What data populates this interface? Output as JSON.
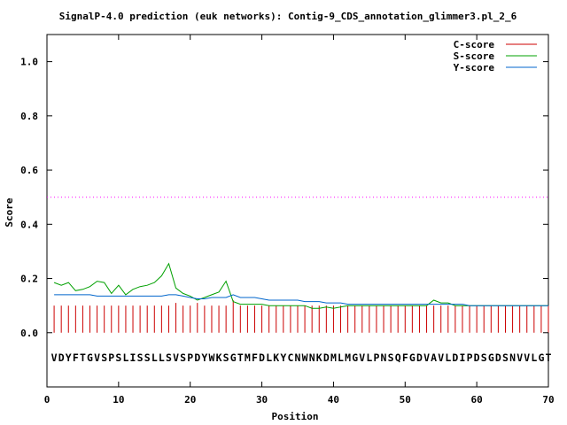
{
  "chart_data": {
    "type": "line",
    "title": "SignalP-4.0 prediction (euk networks): Contig-9_CDS_annotation_glimmer3.pl_2_6",
    "xlabel": "Position",
    "ylabel": "Score",
    "xlim": [
      0,
      70
    ],
    "ylim": [
      -0.2,
      1.1
    ],
    "x_ticks": [
      "0",
      "10",
      "20",
      "30",
      "40",
      "50",
      "60",
      "70"
    ],
    "y_ticks": [
      "0.0",
      "0.2",
      "0.4",
      "0.6",
      "0.8",
      "1.0"
    ],
    "threshold": 0.5,
    "threshold_color": "#ff00ff",
    "legend_position": "top-right",
    "sequence": "VDYFTGVSPSLISSLLSVSPDYWKSGTMFDLKYCNWNKDMLMGVLPNSQFGDVAVLDIPDSGDSNVVLGT",
    "series": [
      {
        "name": "C-score",
        "style": "impulses",
        "color": "#cc0000",
        "x": [
          1,
          2,
          3,
          4,
          5,
          6,
          7,
          8,
          9,
          10,
          11,
          12,
          13,
          14,
          15,
          16,
          17,
          18,
          19,
          20,
          21,
          22,
          23,
          24,
          25,
          26,
          27,
          28,
          29,
          30,
          31,
          32,
          33,
          34,
          35,
          36,
          37,
          38,
          39,
          40,
          41,
          42,
          43,
          44,
          45,
          46,
          47,
          48,
          49,
          50,
          51,
          52,
          53,
          54,
          55,
          56,
          57,
          58,
          59,
          60,
          61,
          62,
          63,
          64,
          65,
          66,
          67,
          68,
          69,
          70
        ],
        "values": [
          0.1,
          0.1,
          0.1,
          0.1,
          0.1,
          0.1,
          0.1,
          0.1,
          0.1,
          0.1,
          0.1,
          0.1,
          0.1,
          0.1,
          0.1,
          0.1,
          0.1,
          0.11,
          0.1,
          0.1,
          0.11,
          0.1,
          0.1,
          0.1,
          0.1,
          0.12,
          0.1,
          0.1,
          0.1,
          0.1,
          0.1,
          0.1,
          0.1,
          0.1,
          0.1,
          0.1,
          0.1,
          0.1,
          0.1,
          0.1,
          0.1,
          0.1,
          0.1,
          0.1,
          0.1,
          0.1,
          0.1,
          0.1,
          0.1,
          0.1,
          0.1,
          0.1,
          0.1,
          0.1,
          0.1,
          0.1,
          0.1,
          0.1,
          0.1,
          0.1,
          0.1,
          0.1,
          0.1,
          0.1,
          0.1,
          0.1,
          0.1,
          0.1,
          0.1,
          0.1
        ]
      },
      {
        "name": "S-score",
        "style": "line",
        "color": "#00a000",
        "x": [
          1,
          2,
          3,
          4,
          5,
          6,
          7,
          8,
          9,
          10,
          11,
          12,
          13,
          14,
          15,
          16,
          17,
          18,
          19,
          20,
          21,
          22,
          23,
          24,
          25,
          26,
          27,
          28,
          29,
          30,
          31,
          32,
          33,
          34,
          35,
          36,
          37,
          38,
          39,
          40,
          41,
          42,
          43,
          44,
          45,
          46,
          47,
          48,
          49,
          50,
          51,
          52,
          53,
          54,
          55,
          56,
          57,
          58,
          59,
          60,
          61,
          62,
          63,
          64,
          65,
          66,
          67,
          68,
          69,
          70
        ],
        "values": [
          0.185,
          0.175,
          0.185,
          0.155,
          0.16,
          0.17,
          0.19,
          0.185,
          0.145,
          0.175,
          0.14,
          0.16,
          0.17,
          0.175,
          0.185,
          0.21,
          0.255,
          0.165,
          0.145,
          0.135,
          0.12,
          0.13,
          0.14,
          0.15,
          0.19,
          0.115,
          0.105,
          0.105,
          0.105,
          0.105,
          0.1,
          0.1,
          0.1,
          0.1,
          0.1,
          0.1,
          0.09,
          0.09,
          0.095,
          0.09,
          0.095,
          0.1,
          0.1,
          0.1,
          0.1,
          0.1,
          0.1,
          0.1,
          0.1,
          0.1,
          0.1,
          0.1,
          0.1,
          0.12,
          0.11,
          0.11,
          0.1,
          0.1,
          0.1,
          0.1,
          0.1,
          0.1,
          0.1,
          0.1,
          0.1,
          0.1,
          0.1,
          0.1,
          0.1,
          0.1
        ]
      },
      {
        "name": "Y-score",
        "style": "line",
        "color": "#0066cc",
        "x": [
          1,
          2,
          3,
          4,
          5,
          6,
          7,
          8,
          9,
          10,
          11,
          12,
          13,
          14,
          15,
          16,
          17,
          18,
          19,
          20,
          21,
          22,
          23,
          24,
          25,
          26,
          27,
          28,
          29,
          30,
          31,
          32,
          33,
          34,
          35,
          36,
          37,
          38,
          39,
          40,
          41,
          42,
          43,
          44,
          45,
          46,
          47,
          48,
          49,
          50,
          51,
          52,
          53,
          54,
          55,
          56,
          57,
          58,
          59,
          60,
          61,
          62,
          63,
          64,
          65,
          66,
          67,
          68,
          69,
          70
        ],
        "values": [
          0.14,
          0.14,
          0.14,
          0.14,
          0.14,
          0.14,
          0.135,
          0.135,
          0.135,
          0.135,
          0.135,
          0.135,
          0.135,
          0.135,
          0.135,
          0.135,
          0.14,
          0.14,
          0.135,
          0.13,
          0.125,
          0.125,
          0.13,
          0.13,
          0.13,
          0.14,
          0.13,
          0.13,
          0.13,
          0.125,
          0.12,
          0.12,
          0.12,
          0.12,
          0.12,
          0.115,
          0.115,
          0.115,
          0.11,
          0.11,
          0.11,
          0.105,
          0.105,
          0.105,
          0.105,
          0.105,
          0.105,
          0.105,
          0.105,
          0.105,
          0.105,
          0.105,
          0.105,
          0.105,
          0.105,
          0.105,
          0.105,
          0.105,
          0.1,
          0.1,
          0.1,
          0.1,
          0.1,
          0.1,
          0.1,
          0.1,
          0.1,
          0.1,
          0.1,
          0.1
        ]
      }
    ]
  }
}
